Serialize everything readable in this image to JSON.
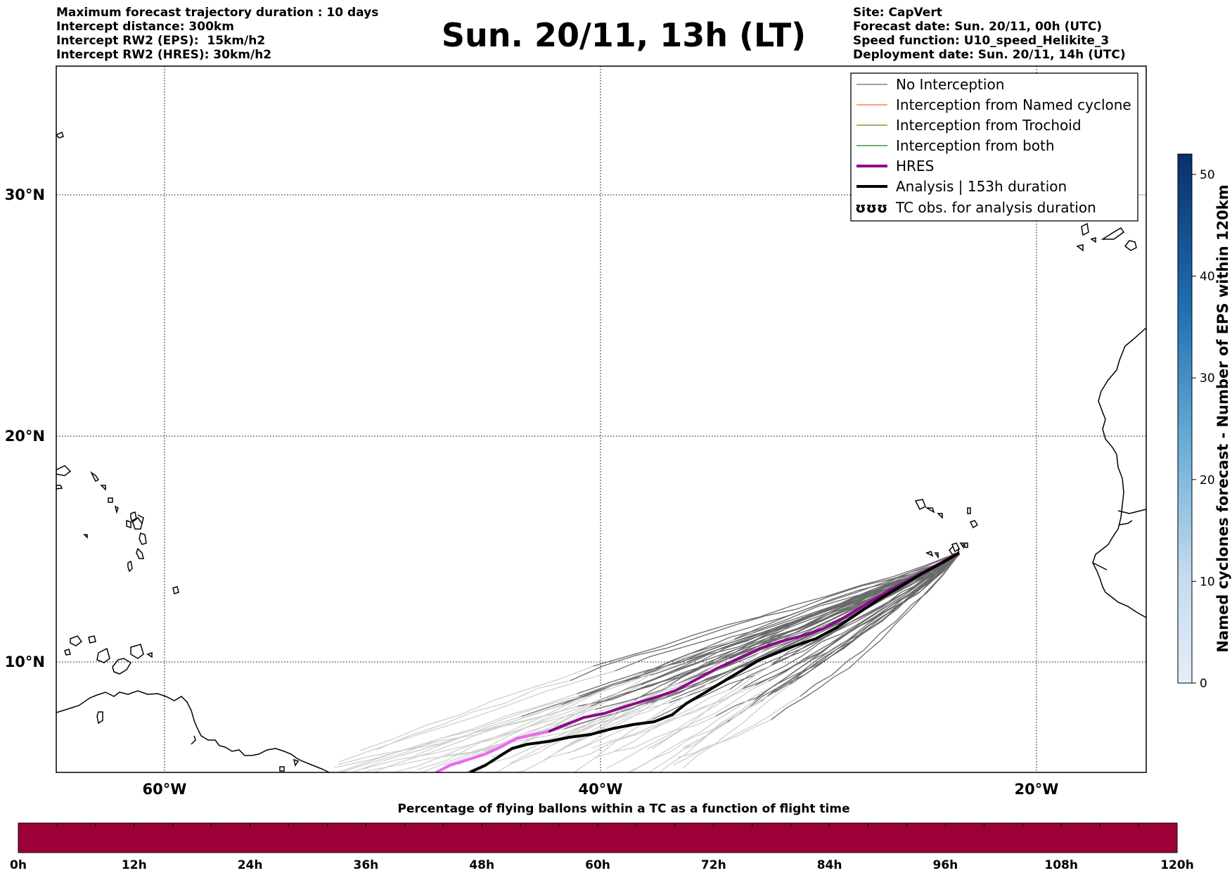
{
  "header": {
    "left_lines": [
      "Maximum forecast trajectory duration : 10 days",
      "Intercept distance: 300km",
      "Intercept RW2 (EPS):  15km/h2",
      "Intercept RW2 (HRES): 30km/h2"
    ],
    "title": "Sun. 20/11, 13h (LT)",
    "right_lines": [
      "Site: CapVert",
      "Forecast date: Sun. 20/11, 00h (UTC)",
      "Speed function: U10_speed_Helikite_3",
      "Deployment date: Sun. 20/11, 14h (UTC)"
    ]
  },
  "map": {
    "lat_labels": [
      "30°N",
      "20°N",
      "10°N"
    ],
    "lon_labels": [
      "60°W",
      "40°W",
      "20°W"
    ],
    "legend": [
      {
        "label": "No Interception",
        "color": "#808080",
        "style": "thin"
      },
      {
        "label": "Interception from Named cyclone",
        "color": "#ff7f50",
        "style": "thin"
      },
      {
        "label": "Interception from Trochoid",
        "color": "#9a8c3a",
        "style": "thin"
      },
      {
        "label": "Interception from both",
        "color": "#3a9a3a",
        "style": "thin"
      },
      {
        "label": "HRES",
        "color": "#8b0a8b",
        "style": "thick"
      },
      {
        "label": "Analysis | 153h duration",
        "color": "#000000",
        "style": "thick"
      },
      {
        "label": "TC obs. for analysis duration",
        "color": "#000000",
        "style": "symbol"
      }
    ],
    "legend_symbol": "ʊʊʊ"
  },
  "colorbar_right": {
    "label": "Named cyclones forecast - Number of EPS within 120km",
    "ticks": [
      "0",
      "10",
      "20",
      "30",
      "40",
      "50"
    ],
    "color_low": "#e3eef8",
    "color_high": "#08306b"
  },
  "colorbar_bottom": {
    "title": "Percentage of flying ballons within a TC as a function of flight time",
    "ticks": [
      "0h",
      "12h",
      "24h",
      "36h",
      "48h",
      "60h",
      "72h",
      "84h",
      "96h",
      "108h",
      "120h"
    ],
    "fill_color": "#9c0039"
  }
}
